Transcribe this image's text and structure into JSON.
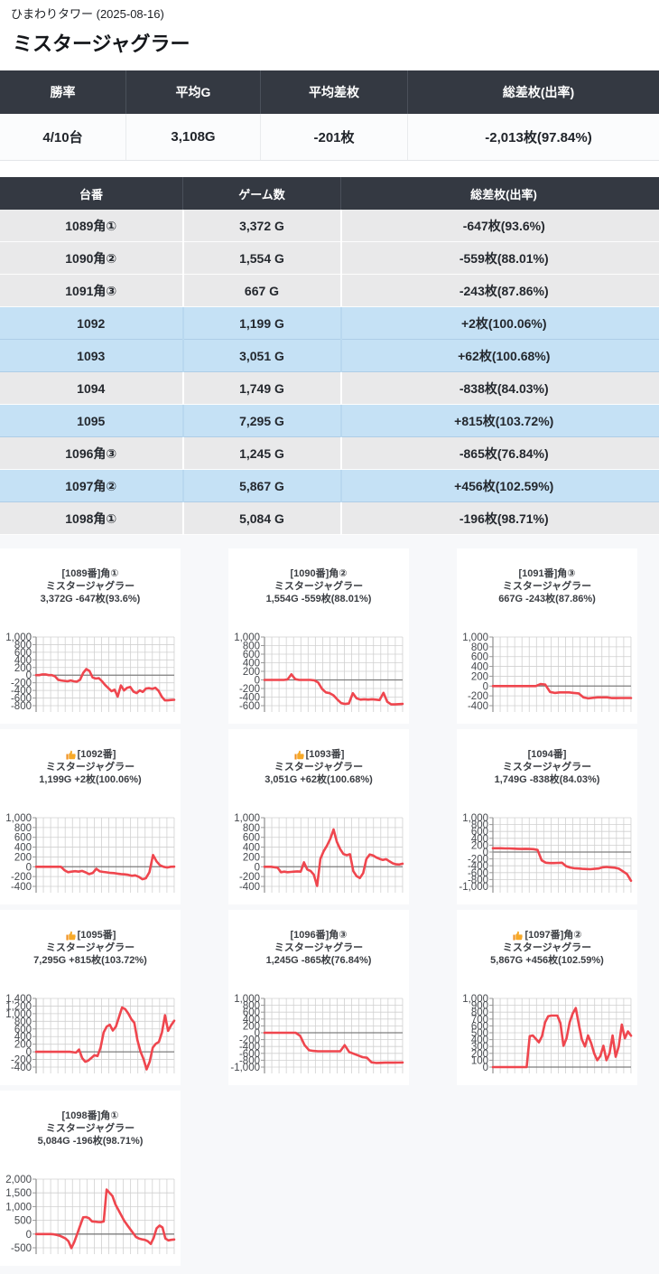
{
  "page": {
    "subtitle": "ひまわりタワー (2025-08-16)",
    "title": "ミスタージャグラー"
  },
  "summary": {
    "headers": [
      "勝率",
      "平均G",
      "平均差枚",
      "総差枚(出率)"
    ],
    "values": [
      "4/10台",
      "3,108G",
      "-201枚",
      "-2,013枚(97.84%)"
    ]
  },
  "machine_table": {
    "headers": [
      "台番",
      "ゲーム数",
      "総差枚(出率)"
    ],
    "rows": [
      {
        "dai": "1089角①",
        "games": "3,372 G",
        "diff": "-647枚(93.6%)",
        "win": false
      },
      {
        "dai": "1090角②",
        "games": "1,554 G",
        "diff": "-559枚(88.01%)",
        "win": false
      },
      {
        "dai": "1091角③",
        "games": "667 G",
        "diff": "-243枚(87.86%)",
        "win": false
      },
      {
        "dai": "1092",
        "games": "1,199 G",
        "diff": "+2枚(100.06%)",
        "win": true
      },
      {
        "dai": "1093",
        "games": "3,051 G",
        "diff": "+62枚(100.68%)",
        "win": true
      },
      {
        "dai": "1094",
        "games": "1,749 G",
        "diff": "-838枚(84.03%)",
        "win": false
      },
      {
        "dai": "1095",
        "games": "7,295 G",
        "diff": "+815枚(103.72%)",
        "win": true
      },
      {
        "dai": "1096角③",
        "games": "1,245 G",
        "diff": "-865枚(76.84%)",
        "win": false
      },
      {
        "dai": "1097角②",
        "games": "5,867 G",
        "diff": "+456枚(102.59%)",
        "win": true
      },
      {
        "dai": "1098角①",
        "games": "5,084 G",
        "diff": "-196枚(98.71%)",
        "win": false
      }
    ]
  },
  "chart_data": [
    {
      "type": "line",
      "title": "[1089番]角①",
      "subtitle": "ミスタージャグラー",
      "stats": "3,372G -647枚(93.6%)",
      "thumb": false,
      "ylabel": "差枚",
      "ylim": [
        -800,
        1000
      ],
      "ytick": 200,
      "grid": true,
      "values": [
        0,
        0,
        20,
        20,
        0,
        0,
        -30,
        -120,
        -140,
        -150,
        -160,
        -140,
        -160,
        -170,
        -120,
        60,
        160,
        110,
        -60,
        -90,
        -80,
        -160,
        -260,
        -340,
        -420,
        -380,
        -560,
        -270,
        -400,
        -330,
        -310,
        -430,
        -470,
        -400,
        -440,
        -350,
        -340,
        -360,
        -330,
        -410,
        -560,
        -660,
        -660,
        -650,
        -647
      ]
    },
    {
      "type": "line",
      "title": "[1090番]角②",
      "subtitle": "ミスタージャグラー",
      "stats": "1,554G -559枚(88.01%)",
      "thumb": false,
      "ylabel": "差枚",
      "ylim": [
        -600,
        1000
      ],
      "ytick": 200,
      "grid": true,
      "values": [
        0,
        0,
        0,
        0,
        0,
        0,
        10,
        130,
        20,
        0,
        0,
        0,
        0,
        -10,
        -60,
        -210,
        -290,
        -310,
        -360,
        -460,
        -540,
        -560,
        -550,
        -310,
        -430,
        -460,
        -450,
        -460,
        -450,
        -460,
        -470,
        -300,
        -510,
        -570,
        -570,
        -565,
        -559
      ]
    },
    {
      "type": "line",
      "title": "[1091番]角③",
      "subtitle": "ミスタージャグラー",
      "stats": "667G -243枚(87.86%)",
      "thumb": false,
      "ylabel": "差枚",
      "ylim": [
        -400,
        1000
      ],
      "ytick": 200,
      "grid": true,
      "values": [
        0,
        0,
        0,
        0,
        0,
        0,
        0,
        0,
        0,
        0,
        40,
        30,
        -120,
        -140,
        -130,
        -130,
        -130,
        -140,
        -150,
        -230,
        -250,
        -240,
        -230,
        -230,
        -230,
        -245,
        -245,
        -243,
        -243,
        -243
      ]
    },
    {
      "type": "line",
      "title": "[1092番]",
      "subtitle": "ミスタージャグラー",
      "stats": "1,199G +2枚(100.06%)",
      "thumb": true,
      "ylabel": "差枚",
      "ylim": [
        -400,
        1000
      ],
      "ytick": 200,
      "grid": true,
      "values": [
        0,
        0,
        0,
        0,
        0,
        0,
        0,
        0,
        -70,
        -110,
        -100,
        -90,
        -100,
        -85,
        -115,
        -150,
        -125,
        -40,
        -95,
        -105,
        -115,
        -125,
        -130,
        -140,
        -150,
        -155,
        -165,
        -185,
        -175,
        -205,
        -255,
        -235,
        -110,
        240,
        110,
        30,
        0,
        -15,
        0,
        2
      ]
    },
    {
      "type": "line",
      "title": "[1093番]",
      "subtitle": "ミスタージャグラー",
      "stats": "3,051G +62枚(100.68%)",
      "thumb": true,
      "ylabel": "差枚",
      "ylim": [
        -400,
        1000
      ],
      "ytick": 200,
      "grid": true,
      "values": [
        0,
        0,
        0,
        -10,
        -20,
        -110,
        -100,
        -110,
        -105,
        -100,
        -95,
        -100,
        90,
        -55,
        -85,
        -160,
        -390,
        160,
        320,
        430,
        570,
        760,
        510,
        360,
        260,
        235,
        255,
        -90,
        -190,
        -230,
        -130,
        160,
        250,
        230,
        190,
        160,
        140,
        155,
        110,
        70,
        50,
        45,
        62
      ]
    },
    {
      "type": "line",
      "title": "[1094番]",
      "subtitle": "ミスタージャグラー",
      "stats": "1,749G -838枚(84.03%)",
      "thumb": false,
      "ylabel": "差枚",
      "ylim": [
        -1000,
        1000
      ],
      "ytick": 200,
      "grid": true,
      "values": [
        110,
        110,
        110,
        105,
        105,
        100,
        95,
        90,
        95,
        90,
        85,
        60,
        -240,
        -310,
        -320,
        -320,
        -315,
        -310,
        -410,
        -450,
        -470,
        -480,
        -490,
        -495,
        -500,
        -490,
        -480,
        -445,
        -435,
        -445,
        -455,
        -485,
        -560,
        -640,
        -838
      ]
    },
    {
      "type": "line",
      "title": "[1095番]",
      "subtitle": "ミスタージャグラー",
      "stats": "7,295G +815枚(103.72%)",
      "thumb": true,
      "ylabel": "差枚",
      "ylim": [
        -400,
        1400
      ],
      "ytick": 200,
      "grid": true,
      "values": [
        0,
        0,
        0,
        0,
        0,
        0,
        0,
        0,
        0,
        0,
        0,
        0,
        -10,
        -20,
        60,
        -160,
        -260,
        -230,
        -160,
        -90,
        -110,
        110,
        510,
        660,
        710,
        560,
        660,
        910,
        1160,
        1120,
        1010,
        860,
        760,
        310,
        10,
        -190,
        -460,
        -260,
        110,
        210,
        260,
        510,
        960,
        550,
        700,
        815
      ]
    },
    {
      "type": "line",
      "title": "[1096番]角③",
      "subtitle": "ミスタージャグラー",
      "stats": "1,245G -865枚(76.84%)",
      "thumb": false,
      "ylabel": "差枚",
      "ylim": [
        -1000,
        1000
      ],
      "ytick": 200,
      "grid": true,
      "values": [
        0,
        0,
        0,
        0,
        0,
        0,
        0,
        0,
        -90,
        -360,
        -510,
        -530,
        -540,
        -540,
        -540,
        -540,
        -540,
        -540,
        -360,
        -560,
        -610,
        -660,
        -710,
        -730,
        -860,
        -880,
        -875,
        -870,
        -870,
        -870,
        -868,
        -865
      ]
    },
    {
      "type": "line",
      "title": "[1097番]角②",
      "subtitle": "ミスタージャグラー",
      "stats": "5,867G +456枚(102.59%)",
      "thumb": true,
      "ylabel": "差枚",
      "ylim": [
        0,
        1000
      ],
      "ytick": 100,
      "grid": true,
      "values": [
        0,
        0,
        0,
        0,
        0,
        0,
        0,
        0,
        0,
        0,
        0,
        0,
        450,
        460,
        410,
        360,
        450,
        650,
        740,
        750,
        750,
        750,
        640,
        310,
        420,
        650,
        780,
        860,
        620,
        400,
        300,
        460,
        350,
        200,
        100,
        160,
        310,
        100,
        200,
        460,
        150,
        300,
        620,
        420,
        520,
        456
      ]
    },
    {
      "type": "line",
      "title": "[1098番]角①",
      "subtitle": "ミスタージャグラー",
      "stats": "5,084G -196枚(98.71%)",
      "thumb": false,
      "ylabel": "差枚",
      "ylim": [
        -500,
        2000
      ],
      "ytick": 500,
      "grid": true,
      "values": [
        0,
        0,
        0,
        0,
        0,
        0,
        -10,
        -30,
        -60,
        -110,
        -160,
        -260,
        -510,
        -290,
        10,
        310,
        610,
        620,
        580,
        460,
        450,
        440,
        435,
        460,
        1620,
        1500,
        1380,
        1080,
        880,
        680,
        480,
        330,
        180,
        40,
        -110,
        -160,
        -190,
        -210,
        -260,
        -360,
        -140,
        210,
        310,
        240,
        -160,
        -230,
        -210,
        -196
      ]
    }
  ],
  "colors": {
    "header_bg": "#343942",
    "win_row": "#c5e1f5",
    "lose_row": "#e9e9ea",
    "line_red": "#ef464e",
    "grid_line": "#d0d0d0",
    "zero_line": "#7d7d7d",
    "thumb_yellow": "#f7a928"
  }
}
